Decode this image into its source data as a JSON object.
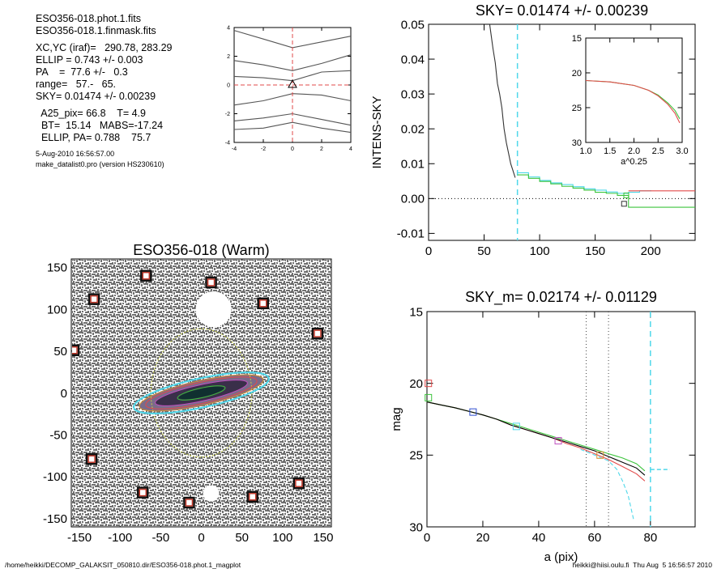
{
  "info": {
    "lines_a": [
      "ESO356-018.phot.1.fits",
      "ESO356-018.1.finmask.fits"
    ],
    "lines_b": [
      "XC,YC (iraf)=   290.78, 283.29",
      "ELLIP = 0.743 +/- 0.003",
      "PA    =  77.6 +/-   0.3",
      "range=   57.-   65.",
      "SKY= 0.01474 +/- 0.00239"
    ],
    "lines_c": [
      "  A25_pix= 66.8    T= 4.9",
      "  BT=  15.14   MABS=-17.24",
      "  ELLIP, PA= 0.788    75.7"
    ],
    "date": "5-Aug-2010 16:56:57.00",
    "program": "make_datalist0.pro (version HS230610)"
  },
  "footer": {
    "left": "/home/heikki/DECOMP_GALAKSIT_050810.dir/ESO356-018.phot.1_magplot",
    "right": "heikki@hiisi.oulu.fi  Thu Aug  5 16:56:57 2010"
  },
  "colors": {
    "cyan": "#4fd8ea",
    "red": "#e24a4a",
    "green": "#3cc43c",
    "blue": "#3050d0",
    "magenta": "#c050c0",
    "orange": "#d89030",
    "yellow": "#c8d040",
    "gray": "#555555"
  },
  "chart_data": [
    {
      "type": "line",
      "title": "",
      "xlabel": "",
      "ylabel": "",
      "xlim": [
        -4,
        4
      ],
      "ylim": [
        -4,
        4
      ],
      "xticks": [
        "-4",
        "-2",
        "0",
        "2",
        "4"
      ],
      "yticks": [
        "-4",
        "-2",
        "0",
        "2",
        "4"
      ],
      "series": [
        {
          "x": [
            -4,
            -2,
            0,
            2,
            4
          ],
          "y": [
            3.8,
            3.2,
            2.6,
            3.0,
            3.4
          ]
        },
        {
          "x": [
            -4,
            -2,
            0,
            2,
            4
          ],
          "y": [
            1.7,
            1.4,
            1.0,
            1.5,
            2.1
          ]
        },
        {
          "x": [
            -4,
            -2,
            0,
            2,
            4
          ],
          "y": [
            0.6,
            0.5,
            0.3,
            0.9,
            1.0
          ]
        },
        {
          "x": [
            -4,
            -2,
            0,
            2,
            4
          ],
          "y": [
            -1.4,
            -1.1,
            -0.6,
            -0.7,
            -1.1
          ]
        },
        {
          "x": [
            -4,
            -2,
            0,
            2,
            4
          ],
          "y": [
            -2.5,
            -2.3,
            -2.0,
            -2.4,
            -2.8
          ]
        },
        {
          "x": [
            -4,
            -2,
            0,
            2,
            4
          ],
          "y": [
            -3.1,
            -3.0,
            -2.6,
            -3.0,
            -3.3
          ]
        }
      ],
      "center": [
        0,
        0
      ]
    },
    {
      "type": "line",
      "title": "SKY= 0.01474 +/- 0.00239",
      "xlabel": "",
      "ylabel": "INTENS-SKY",
      "xlim": [
        0,
        240
      ],
      "ylim": [
        -0.012,
        0.05
      ],
      "xticks": [
        "0",
        "50",
        "100",
        "150",
        "200"
      ],
      "yticks": [
        "-0.01",
        "0.00",
        "0.01",
        "0.02",
        "0.03",
        "0.04",
        "0.05"
      ],
      "series": [
        {
          "name": "",
          "color": "black",
          "x": [
            55,
            58,
            60,
            62,
            64,
            66,
            67,
            68,
            70,
            72,
            74,
            76,
            78
          ],
          "y": [
            0.05,
            0.043,
            0.039,
            0.033,
            0.03,
            0.026,
            0.023,
            0.02,
            0.016,
            0.013,
            0.01,
            0.008,
            0.006
          ]
        },
        {
          "name": "",
          "color": "cyan",
          "x": [
            80,
            90,
            100,
            110,
            120,
            130,
            140,
            150,
            160,
            170,
            180,
            190,
            200
          ],
          "y": [
            0.0074,
            0.0062,
            0.0052,
            0.0045,
            0.004,
            0.0034,
            0.0028,
            0.0024,
            0.0019,
            0.0015,
            0.0018,
            0.0022,
            0.0024
          ]
        },
        {
          "name": "",
          "color": "green",
          "x": [
            80,
            90,
            100,
            110,
            120,
            130,
            140,
            150,
            160,
            170,
            180,
            240
          ],
          "y": [
            0.0068,
            0.0058,
            0.0049,
            0.0042,
            0.0035,
            0.003,
            0.0024,
            0.0018,
            0.0015,
            0.0009,
            -0.0025,
            -0.0025
          ]
        },
        {
          "name": "",
          "color": "red",
          "x": [
            180,
            240
          ],
          "y": [
            0.0022,
            0.0022
          ]
        }
      ],
      "vline": 80,
      "inset": {
        "xlabel": "a^0.25",
        "xlim": [
          1.0,
          3.0
        ],
        "ylim": [
          15,
          30
        ],
        "xticks": [
          "1.0",
          "1.5",
          "2.0",
          "2.5",
          "3.0"
        ],
        "yticks": [
          "15",
          "20",
          "25",
          "30"
        ],
        "series": [
          {
            "color": "green",
            "x": [
              1.0,
              1.5,
              2.0,
              2.3,
              2.5,
              2.7,
              2.85,
              2.95
            ],
            "y": [
              21.1,
              21.3,
              21.8,
              22.5,
              23.2,
              24.3,
              25.4,
              26.6
            ]
          },
          {
            "color": "red",
            "x": [
              1.0,
              1.5,
              2.0,
              2.3,
              2.5,
              2.7,
              2.85,
              2.95
            ],
            "y": [
              21.1,
              21.3,
              21.8,
              22.5,
              23.3,
              24.5,
              25.8,
              27.2
            ]
          }
        ]
      }
    },
    {
      "type": "scatter",
      "title": "ESO356-018 (Warm)",
      "xlabel": "",
      "ylabel": "",
      "xlim": [
        -160,
        160
      ],
      "ylim": [
        -160,
        160
      ],
      "xticks": [
        "-150",
        "-100",
        "-50",
        "0",
        "50",
        "100",
        "150"
      ],
      "yticks": [
        "150",
        "100",
        "50",
        "0",
        "-50",
        "-100",
        "-150"
      ],
      "markers": [
        [
          -68,
          140
        ],
        [
          12,
          132
        ],
        [
          -132,
          112
        ],
        [
          76,
          107
        ],
        [
          143,
          71
        ],
        [
          -157,
          51
        ],
        [
          -135,
          -79
        ],
        [
          -72,
          -119
        ],
        [
          -15,
          -131
        ],
        [
          63,
          -124
        ],
        [
          120,
          -108
        ]
      ],
      "ellipses": [
        {
          "color": "yellow",
          "rx": 62,
          "ry": 79,
          "angle": 0
        },
        {
          "color": "cyan",
          "rx": 85,
          "ry": 18,
          "angle": -12.4
        },
        {
          "color": "orange",
          "rx": 78,
          "ry": 15,
          "angle": -12.4
        },
        {
          "color": "red",
          "rx": 70,
          "ry": 13,
          "angle": -12.4
        },
        {
          "color": "magenta",
          "rx": 58,
          "ry": 10,
          "angle": -12.4
        },
        {
          "color": "green",
          "rx": 30,
          "ry": 6,
          "angle": -12.4
        }
      ]
    },
    {
      "type": "line",
      "title": "SKY_m=  0.02174 +/- 0.01129",
      "xlabel": "a (pix)",
      "ylabel": "mag",
      "xlim": [
        0,
        96
      ],
      "ylim": [
        15,
        30
      ],
      "xticks": [
        "0",
        "20",
        "40",
        "60",
        "80"
      ],
      "yticks": [
        "15",
        "20",
        "25",
        "30"
      ],
      "series": [
        {
          "color": "red",
          "x": [
            0,
            5,
            10,
            16,
            20,
            25,
            30,
            35,
            40,
            45,
            50,
            55,
            60,
            65,
            70,
            75,
            78
          ],
          "y": [
            21.3,
            21.5,
            21.7,
            22.0,
            22.2,
            22.5,
            22.9,
            23.2,
            23.5,
            23.8,
            24.2,
            24.5,
            24.9,
            25.3,
            25.8,
            26.3,
            26.8
          ]
        },
        {
          "color": "green",
          "x": [
            0,
            5,
            10,
            16,
            20,
            25,
            30,
            35,
            40,
            45,
            50,
            55,
            60,
            65,
            70,
            75,
            78
          ],
          "y": [
            21.3,
            21.5,
            21.7,
            22.0,
            22.2,
            22.5,
            22.8,
            23.1,
            23.4,
            23.7,
            24.0,
            24.3,
            24.6,
            24.9,
            25.2,
            25.6,
            26.1
          ]
        },
        {
          "color": "black",
          "x": [
            0,
            5,
            10,
            16,
            20,
            25,
            30,
            35,
            40,
            45,
            50,
            55,
            60,
            65,
            70,
            75,
            78
          ],
          "y": [
            21.3,
            21.5,
            21.7,
            22.0,
            22.2,
            22.5,
            22.9,
            23.2,
            23.5,
            23.8,
            24.1,
            24.4,
            24.7,
            25.1,
            25.5,
            25.9,
            26.4
          ]
        },
        {
          "color": "cyan",
          "dashed": true,
          "x": [
            55,
            60,
            65,
            68,
            70,
            72,
            74
          ],
          "y": [
            24.6,
            25.0,
            25.4,
            26.0,
            26.8,
            27.8,
            29.5
          ]
        }
      ],
      "squares": [
        {
          "color": "red",
          "x": 0.5,
          "y": 20.0
        },
        {
          "color": "green",
          "x": 0.5,
          "y": 21.0
        },
        {
          "color": "blue",
          "x": 16.5,
          "y": 22.0
        },
        {
          "color": "cyan",
          "x": 32,
          "y": 23.0
        },
        {
          "color": "magenta",
          "x": 47,
          "y": 24.0
        },
        {
          "color": "orange",
          "x": 62,
          "y": 25.0
        }
      ],
      "vlines_dotted": [
        57,
        65
      ],
      "vline_dashed": 80,
      "sky_level": {
        "x0": 80,
        "x1": 87,
        "y": 26.0
      }
    }
  ]
}
